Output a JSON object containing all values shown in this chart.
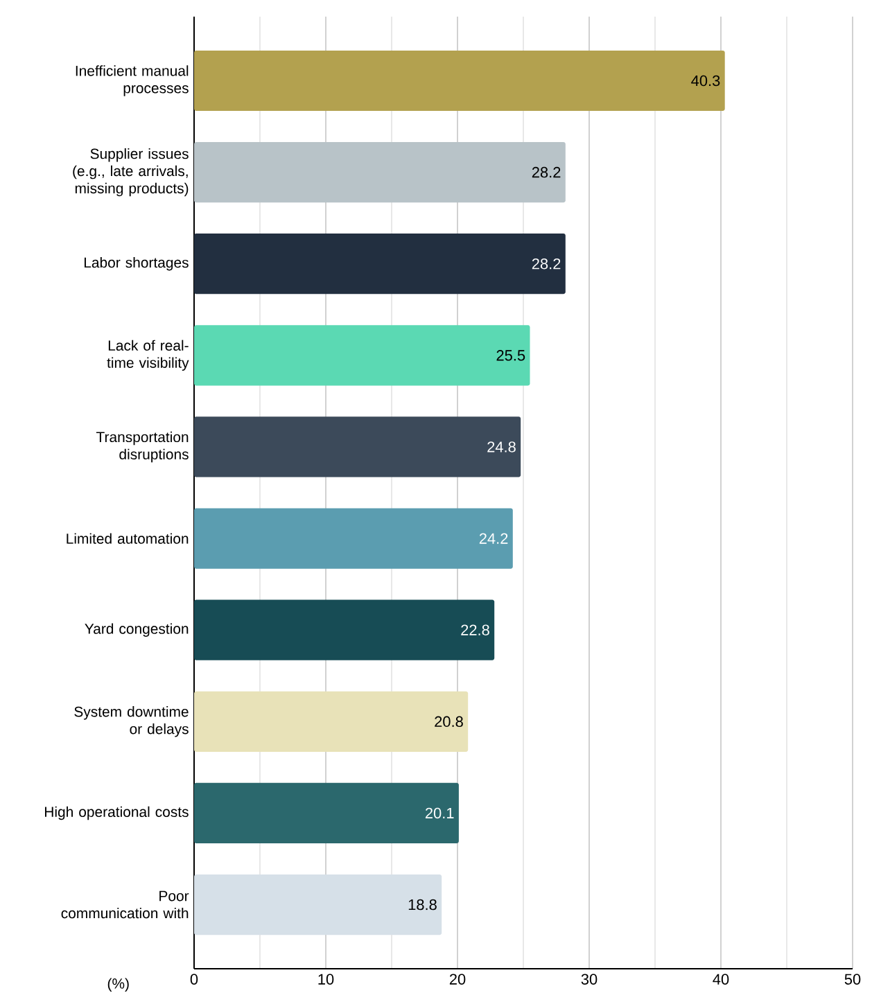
{
  "chart_data": {
    "type": "bar",
    "orientation": "horizontal",
    "xlabel": "(%)",
    "categories": [
      "Inefficient manual processes",
      "Supplier issues (e.g., late arrivals, missing products)",
      "Labor shortages",
      "Lack of real-time visibility",
      "Transportation disruptions",
      "Limited automation",
      "Yard congestion",
      "System downtime or delays",
      "High operational costs",
      "Poor communication with"
    ],
    "values": [
      40.3,
      28.2,
      28.2,
      25.5,
      24.8,
      24.2,
      22.8,
      20.8,
      20.1,
      18.8
    ],
    "colors": [
      "#b3a14f",
      "#b8c3c8",
      "#222f40",
      "#5bd9b3",
      "#3c4a5a",
      "#5b9db0",
      "#174c55",
      "#e8e2b8",
      "#2b686d",
      "#d6e0e8"
    ],
    "xlim": [
      0,
      50
    ],
    "xticks": [
      0,
      10,
      20,
      30,
      40,
      50
    ],
    "grid": "x",
    "data_labels": true
  }
}
